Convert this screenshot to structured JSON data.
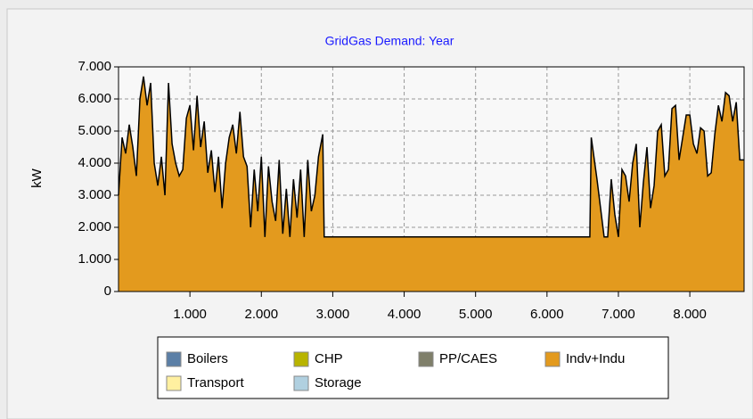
{
  "chart_data": {
    "type": "area",
    "title": "GridGas Demand: Year",
    "ylabel": "kW",
    "x": [
      0,
      50,
      100,
      150,
      200,
      250,
      300,
      350,
      400,
      450,
      500,
      550,
      600,
      650,
      700,
      750,
      800,
      850,
      900,
      950,
      1000,
      1050,
      1100,
      1150,
      1200,
      1250,
      1300,
      1350,
      1400,
      1450,
      1500,
      1550,
      1600,
      1650,
      1700,
      1750,
      1800,
      1850,
      1900,
      1950,
      2000,
      2050,
      2100,
      2150,
      2200,
      2250,
      2300,
      2350,
      2400,
      2450,
      2500,
      2550,
      2600,
      2650,
      2700,
      2750,
      2800,
      2860,
      2880,
      6600,
      6620,
      6700,
      6750,
      6800,
      6850,
      6900,
      6950,
      7000,
      7050,
      7100,
      7150,
      7200,
      7250,
      7300,
      7350,
      7400,
      7450,
      7500,
      7550,
      7600,
      7650,
      7700,
      7750,
      7800,
      7850,
      7900,
      7950,
      8000,
      8050,
      8100,
      8150,
      8200,
      8250,
      8300,
      8350,
      8400,
      8450,
      8500,
      8550,
      8600,
      8650,
      8700,
      8760
    ],
    "series": [
      {
        "name": "Boilers",
        "color": "#5b7fa6"
      },
      {
        "name": "CHP",
        "color": "#b8b400"
      },
      {
        "name": "PP/CAES",
        "color": "#7f7f6a"
      },
      {
        "name": "Indv+Indu",
        "color": "#e39a1e",
        "values": [
          3000,
          4800,
          4300,
          5200,
          4500,
          3600,
          6000,
          6700,
          5800,
          6500,
          4000,
          3300,
          4200,
          3000,
          6500,
          4600,
          4000,
          3600,
          3800,
          5400,
          5800,
          4400,
          6100,
          4500,
          5300,
          3700,
          4400,
          3100,
          4200,
          2600,
          4000,
          4800,
          5200,
          4300,
          5600,
          4200,
          3900,
          2000,
          3800,
          2500,
          4200,
          1700,
          3900,
          2800,
          2200,
          4100,
          1800,
          3200,
          1700,
          3500,
          2300,
          3800,
          1700,
          4100,
          2500,
          3000,
          4200,
          4900,
          1700,
          1700,
          4800,
          3500,
          2600,
          1700,
          1700,
          3500,
          2400,
          1700,
          3800,
          3600,
          2800,
          4000,
          4600,
          2000,
          3400,
          4500,
          2600,
          3300,
          5000,
          5200,
          3600,
          3800,
          5700,
          5800,
          4100,
          4800,
          5500,
          5500,
          4600,
          4300,
          5100,
          5000,
          3600,
          3700,
          4900,
          5800,
          5300,
          6200,
          6100,
          5300,
          5900,
          4100,
          4100
        ]
      },
      {
        "name": "Transport",
        "color": "#fff0a0"
      },
      {
        "name": "Storage",
        "color": "#b0d0e0"
      }
    ],
    "xlim": [
      0,
      8760
    ],
    "ylim": [
      0,
      7000
    ],
    "xticks": [
      {
        "value": 1000,
        "label": "1.000"
      },
      {
        "value": 2000,
        "label": "2.000"
      },
      {
        "value": 3000,
        "label": "3.000"
      },
      {
        "value": 4000,
        "label": "4.000"
      },
      {
        "value": 5000,
        "label": "5.000"
      },
      {
        "value": 6000,
        "label": "6.000"
      },
      {
        "value": 7000,
        "label": "7.000"
      },
      {
        "value": 8000,
        "label": "8.000"
      }
    ],
    "yticks": [
      0,
      {
        "value": 1000,
        "label": "1.000"
      },
      {
        "value": 2000,
        "label": "2.000"
      },
      {
        "value": 3000,
        "label": "3.000"
      },
      {
        "value": 4000,
        "label": "4.000"
      },
      {
        "value": 5000,
        "label": "5.000"
      },
      {
        "value": 6000,
        "label": "6.000"
      },
      {
        "value": 7000,
        "label": "7.000"
      }
    ],
    "grid": true
  }
}
